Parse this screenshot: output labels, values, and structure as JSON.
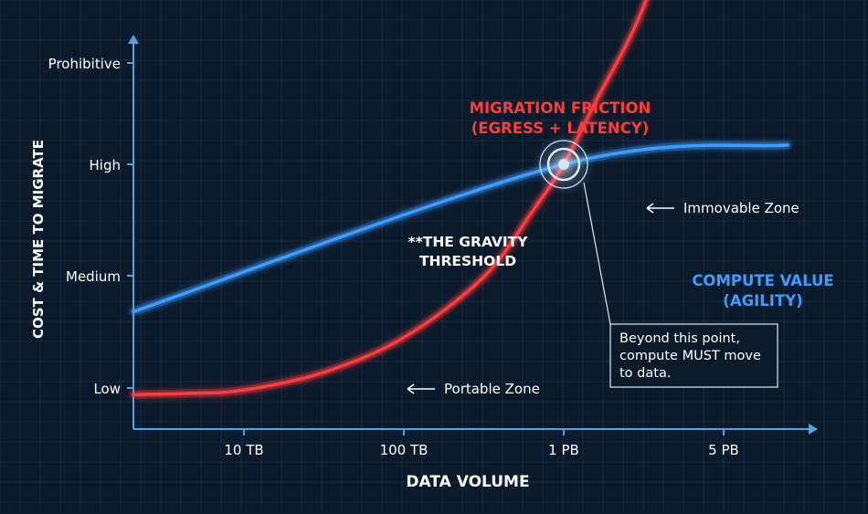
{
  "chart_data": {
    "type": "line",
    "title": "",
    "xlabel": "DATA VOLUME",
    "ylabel": "COST & TIME TO MIGRATE",
    "x_ticks": [
      "10 TB",
      "100 TB",
      "1 PB",
      "5 PB"
    ],
    "y_ticks": [
      "Low",
      "Medium",
      "High",
      "Prohibitive"
    ],
    "grid": true,
    "series": [
      {
        "name_lines": [
          "MIGRATION FRICTION",
          "(EGRESS + LATENCY)"
        ],
        "color": "#ff3b3b",
        "description": "exponential growth",
        "points": [
          [
            0,
            0.84
          ],
          [
            0.5,
            0.87
          ],
          [
            1,
            0.95
          ],
          [
            1.5,
            1.14
          ],
          [
            2,
            1.45
          ],
          [
            2.5,
            1.99
          ],
          [
            2.8,
            2.57
          ],
          [
            3,
            3.0
          ],
          [
            3.2,
            3.62
          ],
          [
            3.5,
            4.56
          ],
          [
            3.8,
            6.0
          ]
        ]
      },
      {
        "name_lines": [
          "COMPUTE VALUE",
          "(AGILITY)"
        ],
        "color": "#3d9cff",
        "description": "gentle linear growth",
        "points": [
          [
            0,
            1.68
          ],
          [
            3,
            3.0
          ],
          [
            4.4,
            3.19
          ]
        ]
      }
    ],
    "annotations": {
      "threshold_lines": [
        "**THE GRAVITY",
        "THRESHOLD"
      ],
      "callout_lines": [
        "Beyond this point,",
        "compute MUST move",
        "to data."
      ],
      "immovable": "Immovable Zone",
      "portable": "Portable Zone"
    }
  },
  "colors": {
    "background": "#0b1a2b",
    "grid": "#1f3a57",
    "axis": "#4fa3e3",
    "friction": "#ff3b3b",
    "compute": "#3d9cff",
    "text": "#ffffff"
  }
}
